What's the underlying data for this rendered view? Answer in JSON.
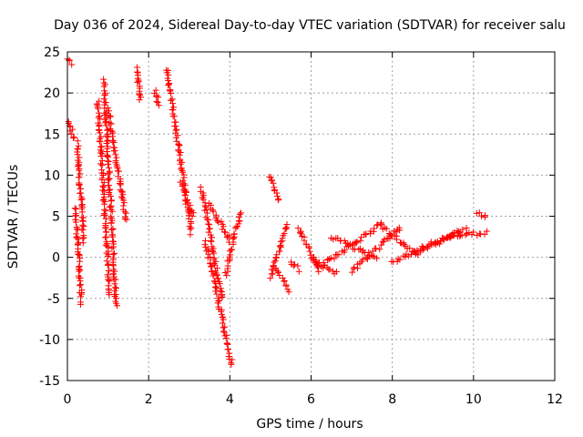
{
  "chart_data": {
    "type": "scatter",
    "title": "Day 036 of 2024, Sidereal Day-to-day VTEC variation (SDTVAR) for receiver salu",
    "xlabel": "GPS time / hours",
    "ylabel": "SDTVAR / TECUs",
    "xlim": [
      0,
      12
    ],
    "ylim": [
      -15,
      25
    ],
    "xticks": [
      "0",
      "2",
      "4",
      "6",
      "8",
      "10",
      "12"
    ],
    "yticks": [
      "-15",
      "-10",
      "-5",
      "0",
      "5",
      "10",
      "15",
      "20",
      "25"
    ],
    "grid": true,
    "marker": "plus",
    "color": "#ff0000",
    "segments": [
      {
        "x": [
          0.0,
          0.1
        ],
        "y": [
          24.5,
          23.5
        ]
      },
      {
        "x": [
          0.0,
          0.15
        ],
        "y": [
          17.0,
          14.5
        ]
      },
      {
        "x": [
          0.2,
          0.35
        ],
        "y": [
          6.0,
          -5.5
        ]
      },
      {
        "x": [
          0.25,
          0.4
        ],
        "y": [
          14.0,
          2.0
        ]
      },
      {
        "x": [
          0.75,
          1.05
        ],
        "y": [
          19.0,
          -4.5
        ]
      },
      {
        "x": [
          0.9,
          1.2
        ],
        "y": [
          21.5,
          -6.0
        ]
      },
      {
        "x": [
          1.0,
          1.45
        ],
        "y": [
          18.0,
          4.5
        ]
      },
      {
        "x": [
          1.7,
          1.8
        ],
        "y": [
          23.0,
          19.0
        ]
      },
      {
        "x": [
          2.15,
          2.25
        ],
        "y": [
          20.5,
          18.5
        ]
      },
      {
        "x": [
          2.45,
          3.05
        ],
        "y": [
          23.0,
          3.0
        ]
      },
      {
        "x": [
          2.8,
          3.1
        ],
        "y": [
          9.0,
          5.0
        ]
      },
      {
        "x": [
          3.3,
          3.8
        ],
        "y": [
          8.5,
          -5.0
        ]
      },
      {
        "x": [
          3.4,
          4.05
        ],
        "y": [
          2.0,
          -13.0
        ]
      },
      {
        "x": [
          3.5,
          4.0
        ],
        "y": [
          6.5,
          2.0
        ]
      },
      {
        "x": [
          3.9,
          4.25
        ],
        "y": [
          -2.0,
          5.5
        ]
      },
      {
        "x": [
          5.0,
          5.2
        ],
        "y": [
          10.0,
          7.0
        ]
      },
      {
        "x": [
          5.0,
          5.4
        ],
        "y": [
          -2.5,
          4.0
        ]
      },
      {
        "x": [
          5.1,
          5.45
        ],
        "y": [
          -1.0,
          -4.0
        ]
      },
      {
        "x": [
          5.5,
          5.7
        ],
        "y": [
          -0.5,
          -1.5
        ]
      },
      {
        "x": [
          5.7,
          6.2
        ],
        "y": [
          3.5,
          -1.5
        ]
      },
      {
        "x": [
          6.0,
          6.6
        ],
        "y": [
          0.0,
          -2.0
        ]
      },
      {
        "x": [
          6.5,
          7.6
        ],
        "y": [
          2.5,
          0.0
        ]
      },
      {
        "x": [
          6.2,
          7.7
        ],
        "y": [
          -1.2,
          4.0
        ]
      },
      {
        "x": [
          7.0,
          8.2
        ],
        "y": [
          -1.8,
          3.7
        ]
      },
      {
        "x": [
          7.7,
          8.6
        ],
        "y": [
          4.0,
          0.2
        ]
      },
      {
        "x": [
          8.0,
          9.6
        ],
        "y": [
          -0.5,
          3.0
        ]
      },
      {
        "x": [
          8.6,
          9.8
        ],
        "y": [
          0.5,
          3.5
        ]
      },
      {
        "x": [
          9.3,
          10.3
        ],
        "y": [
          2.5,
          3.0
        ]
      },
      {
        "x": [
          10.1,
          10.3
        ],
        "y": [
          5.5,
          5.0
        ]
      }
    ]
  }
}
